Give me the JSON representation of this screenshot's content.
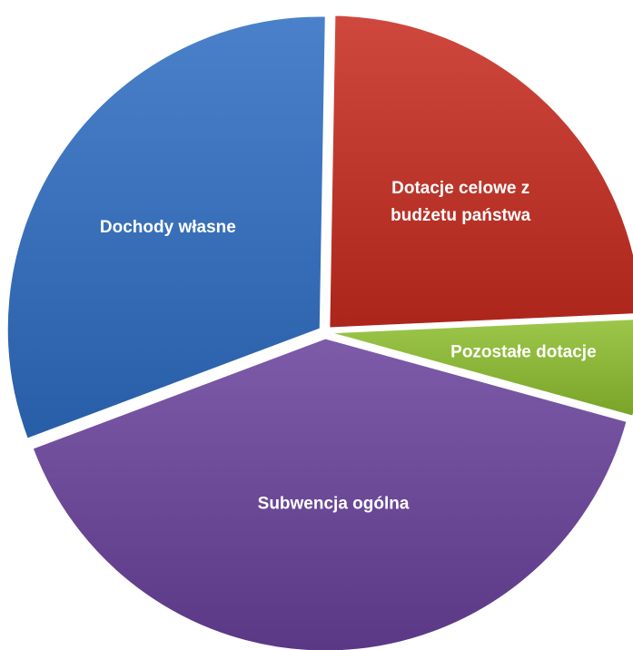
{
  "chart_data": {
    "type": "pie",
    "title": "",
    "exploded": true,
    "legend": "none",
    "slices": [
      {
        "label": "Dotacje celowe z budżetu państwa",
        "label_lines": [
          "Dotacje celowe z",
          "budżetu państwa"
        ],
        "value": 24,
        "color": "#c0392f"
      },
      {
        "label": "Pozostałe dotacje",
        "label_lines": [
          "Pozostałe dotacje"
        ],
        "value": 5,
        "color": "#8db83c"
      },
      {
        "label": "Subwencja ogólna",
        "label_lines": [
          "Subwencja ogólna"
        ],
        "value": 40,
        "color": "#6e4c99"
      },
      {
        "label": "Dochody własne",
        "label_lines": [
          "Dochody własne"
        ],
        "value": 31,
        "color": "#3b72bb"
      }
    ]
  }
}
